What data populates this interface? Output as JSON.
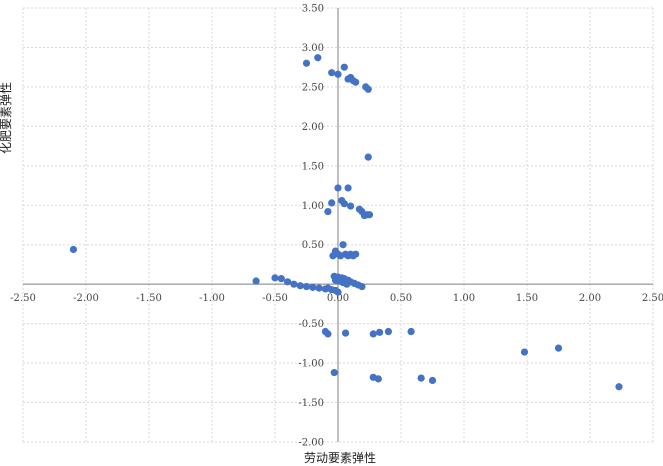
{
  "chart_data": {
    "type": "scatter",
    "title": "",
    "xlabel": "劳动要素弹性",
    "ylabel": "化肥要素弹性",
    "xlim": [
      -2.5,
      2.5
    ],
    "ylim": [
      -2.0,
      3.5
    ],
    "x_ticks": [
      "-2.50",
      "-2.00",
      "-1.50",
      "-1.00",
      "-0.50",
      "0.00",
      "0.50",
      "1.00",
      "1.50",
      "2.00",
      "2.50"
    ],
    "y_ticks": [
      "-2.00",
      "-1.50",
      "-1.00",
      "-0.50",
      "0.00",
      "0.50",
      "1.00",
      "1.50",
      "2.00",
      "2.50",
      "3.00",
      "3.50"
    ],
    "grid": true,
    "marker_color": "#4472c4",
    "points": [
      {
        "x": -2.1,
        "y": 0.44
      },
      {
        "x": -0.65,
        "y": 0.04
      },
      {
        "x": -0.5,
        "y": 0.08
      },
      {
        "x": -0.45,
        "y": 0.07
      },
      {
        "x": -0.4,
        "y": 0.03
      },
      {
        "x": -0.35,
        "y": 0.0
      },
      {
        "x": -0.3,
        "y": -0.02
      },
      {
        "x": -0.25,
        "y": -0.03
      },
      {
        "x": -0.2,
        "y": -0.04
      },
      {
        "x": -0.15,
        "y": -0.05
      },
      {
        "x": -0.1,
        "y": -0.06
      },
      {
        "x": -0.05,
        "y": -0.07
      },
      {
        "x": -0.02,
        "y": -0.08
      },
      {
        "x": 0.0,
        "y": -0.1
      },
      {
        "x": -0.03,
        "y": 0.1
      },
      {
        "x": 0.0,
        "y": 0.09
      },
      {
        "x": 0.03,
        "y": 0.08
      },
      {
        "x": 0.05,
        "y": 0.07
      },
      {
        "x": 0.08,
        "y": 0.05
      },
      {
        "x": 0.1,
        "y": 0.03
      },
      {
        "x": 0.13,
        "y": 0.01
      },
      {
        "x": 0.16,
        "y": -0.01
      },
      {
        "x": 0.19,
        "y": -0.03
      },
      {
        "x": -0.02,
        "y": 0.05
      },
      {
        "x": 0.01,
        "y": 0.04
      },
      {
        "x": 0.04,
        "y": 0.02
      },
      {
        "x": 0.07,
        "y": 0.0
      },
      {
        "x": -0.08,
        "y": -0.05
      },
      {
        "x": -0.02,
        "y": 0.42
      },
      {
        "x": 0.0,
        "y": 0.38
      },
      {
        "x": 0.02,
        "y": 0.36
      },
      {
        "x": 0.04,
        "y": 0.5
      },
      {
        "x": 0.06,
        "y": 0.38
      },
      {
        "x": 0.08,
        "y": 0.36
      },
      {
        "x": 0.1,
        "y": 0.38
      },
      {
        "x": 0.12,
        "y": 0.36
      },
      {
        "x": 0.14,
        "y": 0.38
      },
      {
        "x": -0.04,
        "y": 0.36
      },
      {
        "x": 0.03,
        "y": 1.06
      },
      {
        "x": 0.05,
        "y": 1.02
      },
      {
        "x": 0.08,
        "y": 1.22
      },
      {
        "x": 0.1,
        "y": 0.99
      },
      {
        "x": 0.17,
        "y": 0.95
      },
      {
        "x": 0.19,
        "y": 0.92
      },
      {
        "x": 0.21,
        "y": 0.87
      },
      {
        "x": 0.23,
        "y": 0.88
      },
      {
        "x": 0.25,
        "y": 0.88
      },
      {
        "x": 0.0,
        "y": 1.22
      },
      {
        "x": -0.05,
        "y": 1.03
      },
      {
        "x": -0.08,
        "y": 0.92
      },
      {
        "x": 0.24,
        "y": 1.61
      },
      {
        "x": -0.25,
        "y": 2.8
      },
      {
        "x": -0.16,
        "y": 2.87
      },
      {
        "x": -0.05,
        "y": 2.68
      },
      {
        "x": 0.0,
        "y": 2.66
      },
      {
        "x": 0.05,
        "y": 2.75
      },
      {
        "x": 0.08,
        "y": 2.6
      },
      {
        "x": 0.1,
        "y": 2.62
      },
      {
        "x": 0.12,
        "y": 2.58
      },
      {
        "x": 0.14,
        "y": 2.56
      },
      {
        "x": 0.22,
        "y": 2.5
      },
      {
        "x": 0.24,
        "y": 2.47
      },
      {
        "x": -0.1,
        "y": -0.6
      },
      {
        "x": -0.08,
        "y": -0.63
      },
      {
        "x": 0.06,
        "y": -0.62
      },
      {
        "x": 0.28,
        "y": -0.63
      },
      {
        "x": 0.33,
        "y": -0.61
      },
      {
        "x": 0.4,
        "y": -0.6
      },
      {
        "x": 0.58,
        "y": -0.6
      },
      {
        "x": -0.03,
        "y": -1.12
      },
      {
        "x": 0.28,
        "y": -1.18
      },
      {
        "x": 0.32,
        "y": -1.2
      },
      {
        "x": 0.66,
        "y": -1.19
      },
      {
        "x": 0.75,
        "y": -1.22
      },
      {
        "x": 1.48,
        "y": -0.86
      },
      {
        "x": 1.75,
        "y": -0.81
      },
      {
        "x": 2.23,
        "y": -1.3
      }
    ]
  }
}
